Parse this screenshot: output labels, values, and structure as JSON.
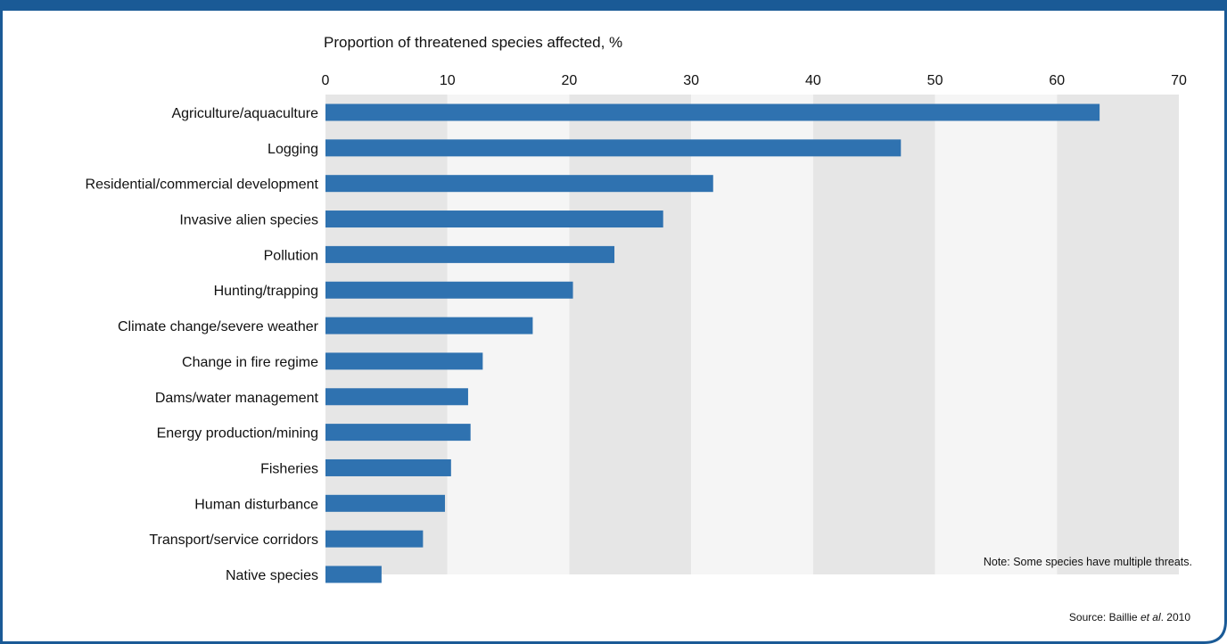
{
  "chart_data": {
    "type": "bar",
    "orientation": "horizontal",
    "title": "Proportion of threatened species affected, %",
    "categories": [
      "Agriculture/aquaculture",
      "Logging",
      "Residential/commercial development",
      "Invasive alien species",
      "Pollution",
      "Hunting/trapping",
      "Climate change/severe weather",
      "Change in fire regime",
      "Dams/water management",
      "Energy production/mining",
      "Fisheries",
      "Human disturbance",
      "Transport/service corridors",
      "Native species"
    ],
    "values": [
      63.5,
      47.2,
      31.8,
      27.7,
      23.7,
      20.3,
      17.0,
      12.9,
      11.7,
      11.9,
      10.3,
      9.8,
      8.0,
      4.6
    ],
    "xlim": [
      0,
      70
    ],
    "xticks": [
      "0",
      "10",
      "20",
      "30",
      "40",
      "50",
      "60",
      "70"
    ],
    "grid": "alternating vertical bands",
    "legend": "none",
    "note": "Note: Some species have multiple threats.",
    "source": {
      "prefix": "Source: Baillie ",
      "italic": "et al",
      "suffix": ". 2010"
    }
  },
  "colors": {
    "frame": "#1a5a96",
    "bar": "#2f72b0",
    "band_dark": "#e6e6e6",
    "band_light": "#f5f5f5"
  }
}
